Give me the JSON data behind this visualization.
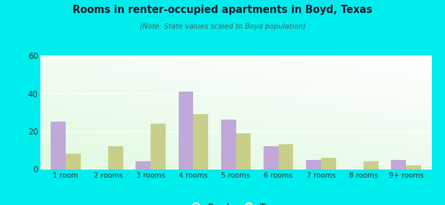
{
  "title": "Rooms in renter-occupied apartments in Boyd, Texas",
  "subtitle": "(Note: State values scaled to Boyd population)",
  "categories": [
    "1 room",
    "2 rooms",
    "3 rooms",
    "4 rooms",
    "5 rooms",
    "6 rooms",
    "7 rooms",
    "8 rooms",
    "9+ rooms"
  ],
  "boyd_values": [
    25,
    0,
    4,
    41,
    26,
    12,
    5,
    0,
    5
  ],
  "texas_values": [
    8,
    12,
    24,
    29,
    19,
    13,
    6,
    4,
    2
  ],
  "boyd_color": "#c0a8d8",
  "texas_color": "#c8cf8a",
  "background_outer": "#00eded",
  "plot_bg_top": "#f5fdf5",
  "plot_bg_bottom": "#d4ecd4",
  "ylim": [
    0,
    60
  ],
  "yticks": [
    0,
    20,
    40,
    60
  ],
  "bar_width": 0.35,
  "title_color": "#1a1a2e",
  "subtitle_color": "#4a6060"
}
